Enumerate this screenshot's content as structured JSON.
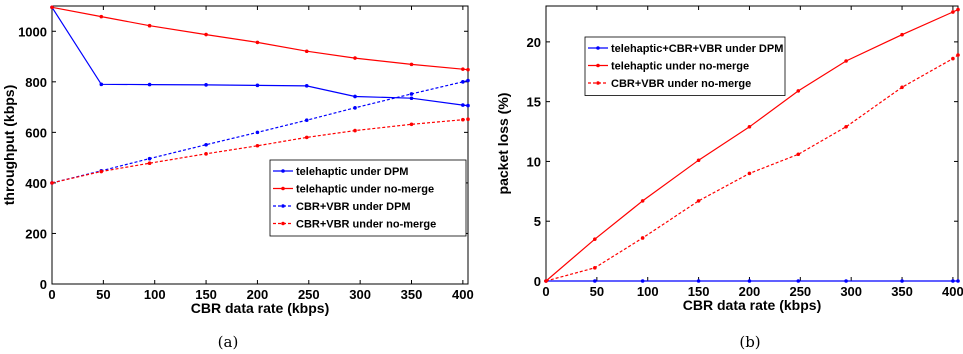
{
  "chart_data": [
    {
      "type": "line",
      "caption": "(a)",
      "xlabel": "CBR data rate (kbps)",
      "ylabel": "throughput (kbps)",
      "xlim": [
        0,
        405
      ],
      "ylim": [
        0,
        1100
      ],
      "xticks": [
        0,
        50,
        100,
        150,
        200,
        250,
        300,
        350,
        400
      ],
      "yticks": [
        0,
        200,
        400,
        600,
        800,
        1000
      ],
      "grid": false,
      "legend_position": "lower-right",
      "x": [
        0,
        48,
        95,
        150,
        200,
        248,
        295,
        350,
        400,
        405
      ],
      "series": [
        {
          "name": "telehaptic under DPM",
          "color": "#0000ff",
          "dash": "solid",
          "values": [
            1095,
            790,
            789,
            788,
            786,
            784,
            742,
            735,
            708,
            706
          ]
        },
        {
          "name": "telehaptic under no-merge",
          "color": "#ff0000",
          "dash": "solid",
          "values": [
            1095,
            1058,
            1022,
            987,
            956,
            921,
            894,
            869,
            850,
            848
          ]
        },
        {
          "name": "CBR+VBR under DPM",
          "color": "#0000ff",
          "dash": "dashed",
          "values": [
            400,
            448,
            496,
            551,
            600,
            648,
            697,
            752,
            800,
            805
          ]
        },
        {
          "name": "CBR+VBR under no-merge",
          "color": "#ff0000",
          "dash": "dashed",
          "values": [
            400,
            445,
            478,
            515,
            547,
            580,
            607,
            632,
            650,
            652
          ]
        }
      ]
    },
    {
      "type": "line",
      "caption": "(b)",
      "xlabel": "CBR data rate (kbps)",
      "ylabel": "packet loss (%)",
      "xlim": [
        0,
        405
      ],
      "ylim": [
        0,
        23
      ],
      "xticks": [
        0,
        50,
        100,
        150,
        200,
        250,
        300,
        350,
        400
      ],
      "yticks": [
        0,
        5,
        10,
        15,
        20
      ],
      "grid": false,
      "legend_position": "top-left",
      "x": [
        0,
        48,
        95,
        150,
        200,
        248,
        295,
        350,
        400,
        405
      ],
      "series": [
        {
          "name": "telehaptic+CBR+VBR under DPM",
          "color": "#0000ff",
          "dash": "solid",
          "values": [
            0,
            0,
            0,
            0,
            0,
            0,
            0,
            0,
            0,
            0
          ]
        },
        {
          "name": "telehaptic under no-merge",
          "color": "#ff0000",
          "dash": "solid",
          "values": [
            0,
            3.5,
            6.7,
            10.1,
            12.9,
            15.9,
            18.4,
            20.6,
            22.5,
            22.7
          ]
        },
        {
          "name": "CBR+VBR under no-merge",
          "color": "#ff0000",
          "dash": "dashed",
          "values": [
            0,
            1.1,
            3.6,
            6.7,
            9.0,
            10.6,
            12.9,
            16.2,
            18.6,
            18.9
          ]
        }
      ]
    }
  ]
}
